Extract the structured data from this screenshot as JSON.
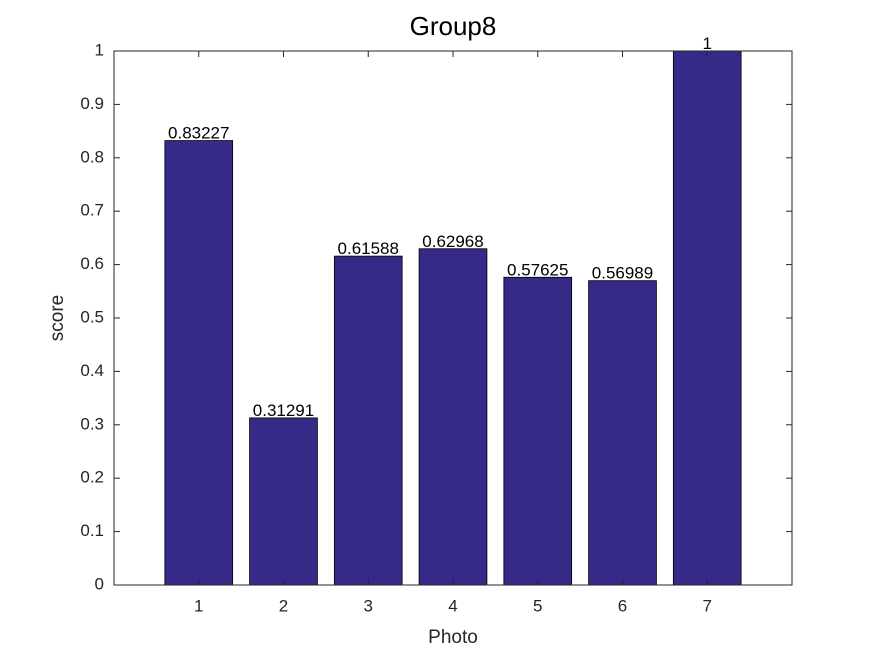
{
  "chart_data": {
    "type": "bar",
    "title": "Group8",
    "xlabel": "Photo",
    "ylabel": "score",
    "x": [
      1,
      2,
      3,
      4,
      5,
      6,
      7
    ],
    "values": [
      0.83227,
      0.31291,
      0.61588,
      0.62968,
      0.57625,
      0.56989,
      1
    ],
    "color": "#352a87",
    "xlim": [
      0,
      8
    ],
    "xticks": [
      1,
      2,
      3,
      4,
      5,
      6,
      7
    ],
    "ylim": [
      0,
      1
    ],
    "yticks": [
      0,
      0.1,
      0.2,
      0.3,
      0.4,
      0.5,
      0.6,
      0.7,
      0.8,
      0.9,
      1
    ],
    "grid": false
  }
}
